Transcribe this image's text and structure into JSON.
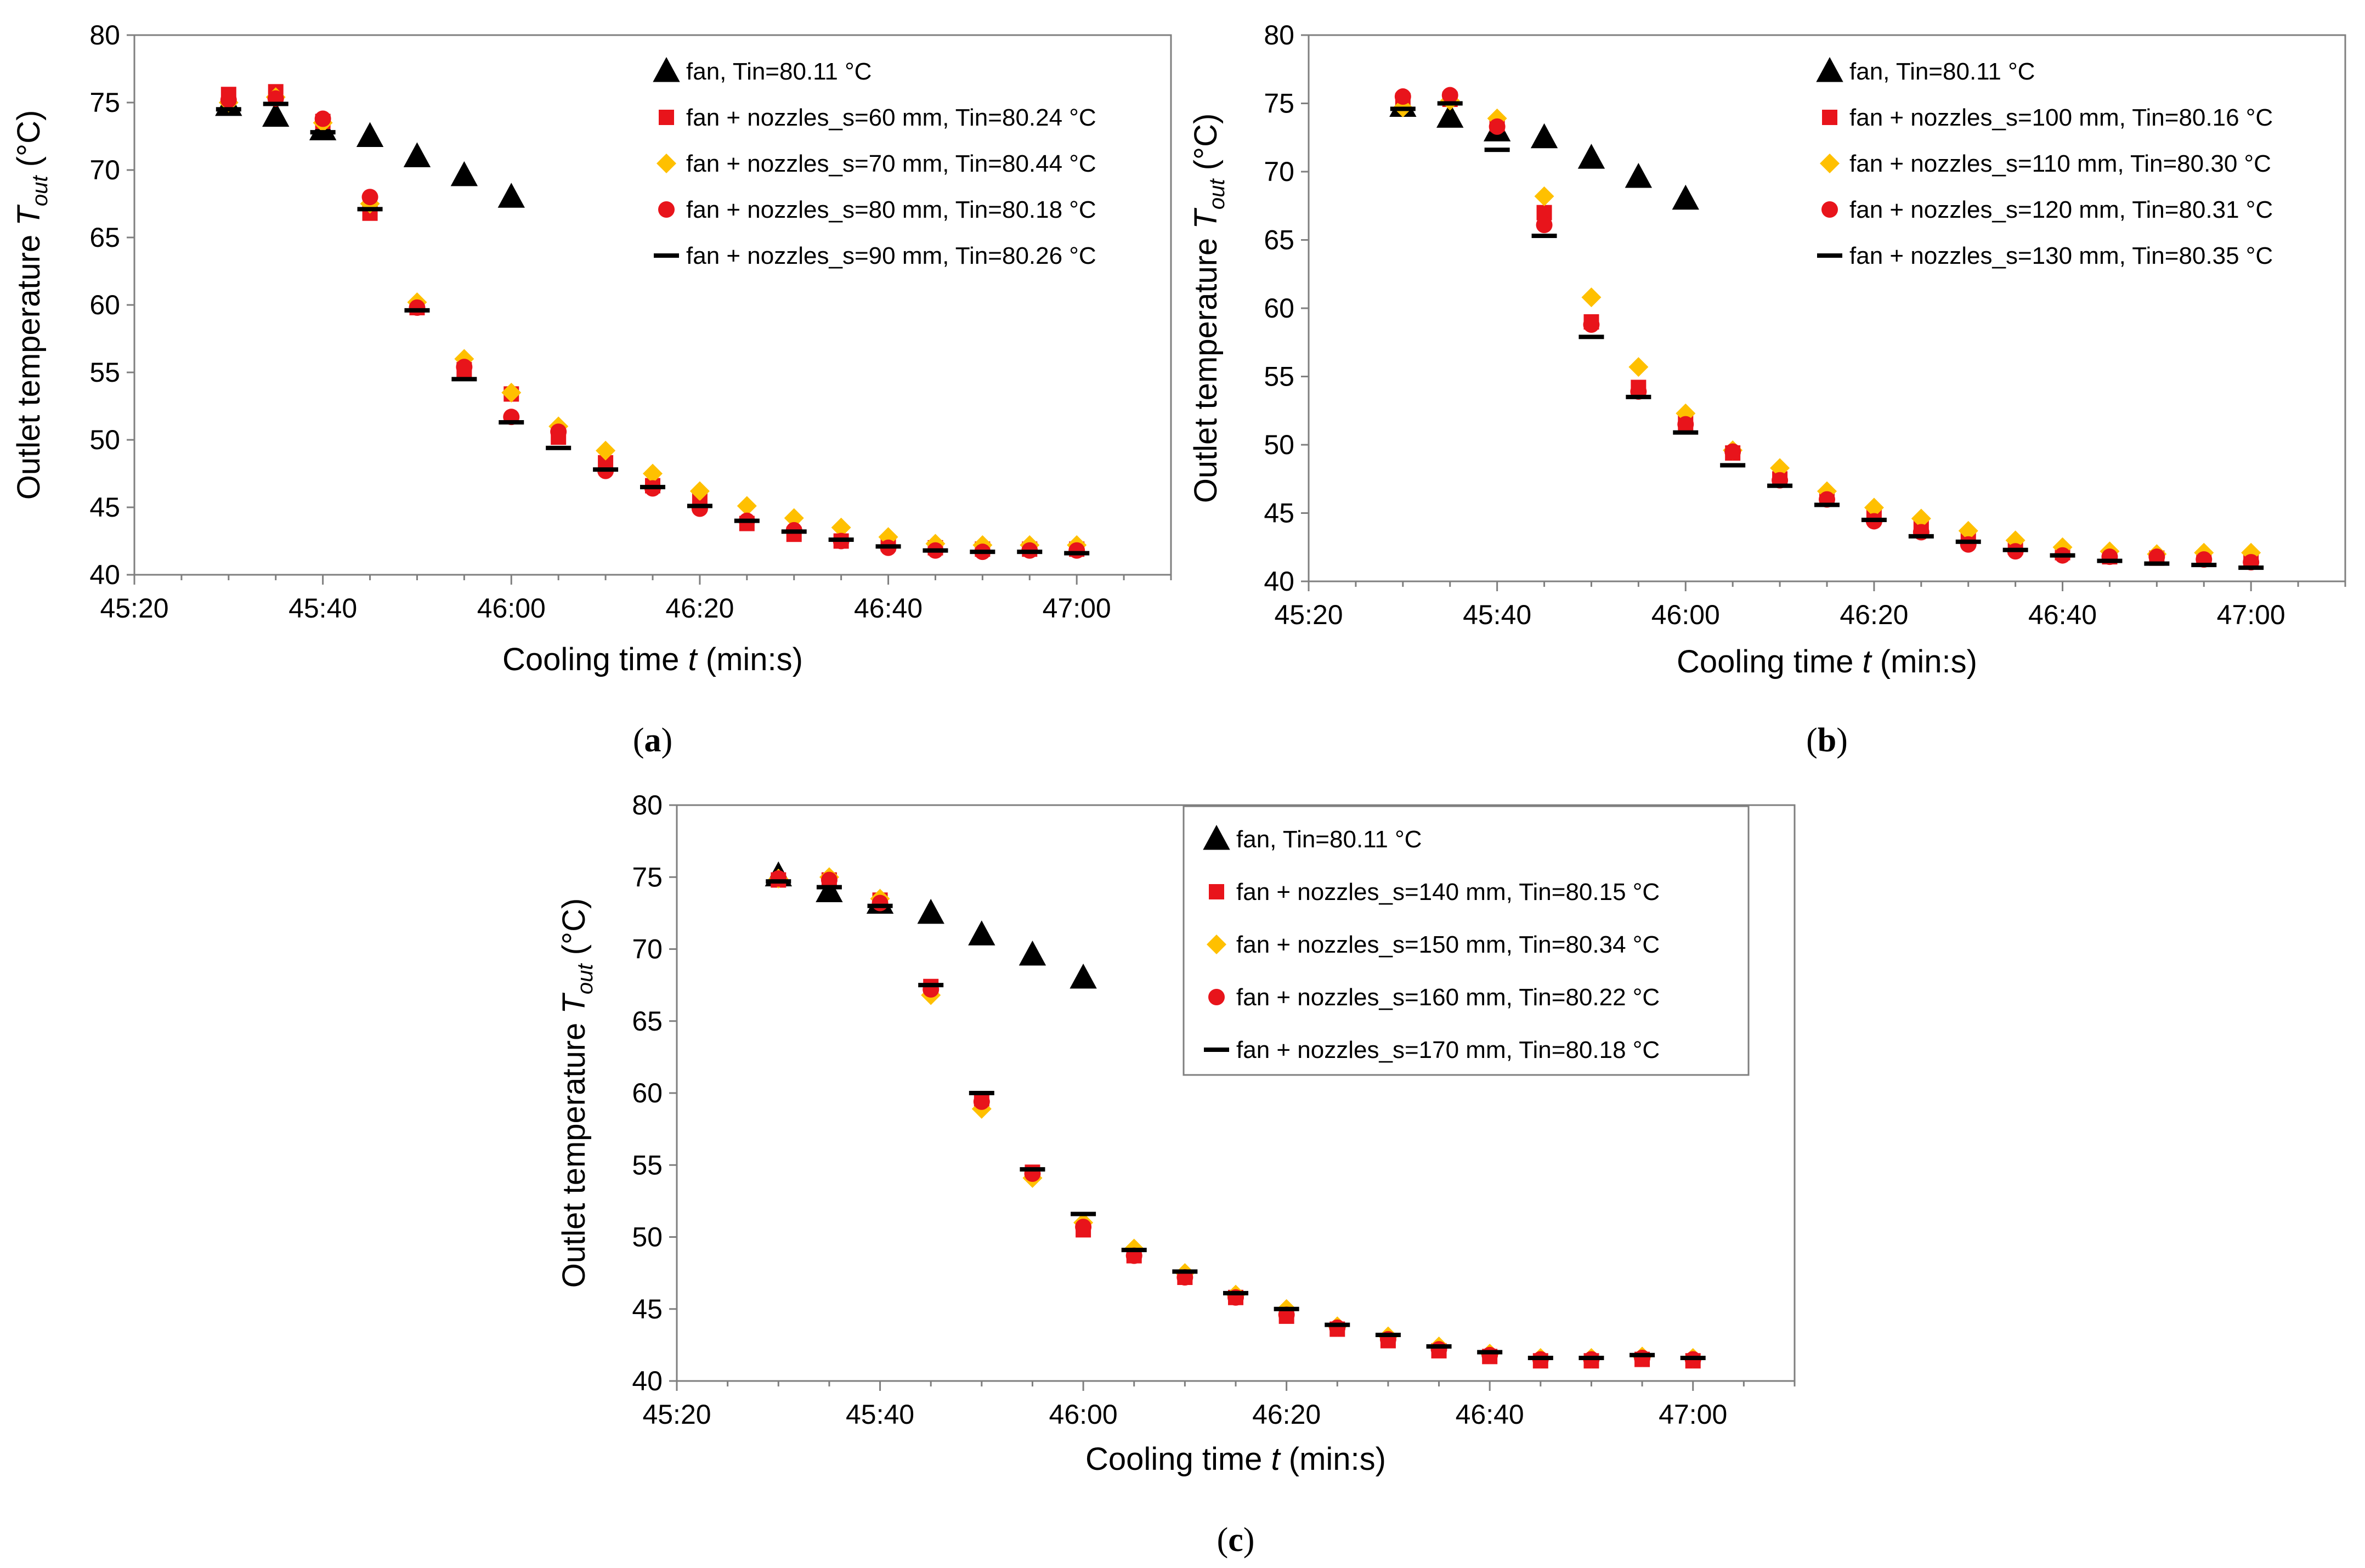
{
  "chart_data": [
    {
      "type": "scatter",
      "caption": "a",
      "title": "",
      "xlabel": "Cooling time t (min:s)",
      "xlabel_parts": {
        "pre": "Cooling time ",
        "var": "t",
        "post": " (min:s)"
      },
      "ylabel_parts": {
        "pre": "Outlet temperature ",
        "var": "T",
        "sub": "out",
        "post": " (°C)"
      },
      "xlim_seconds": [
        2720,
        2830
      ],
      "ylim": [
        40,
        80
      ],
      "x_ticks": [
        "45:20",
        "45:40",
        "46:00",
        "46:20",
        "46:40",
        "47:00"
      ],
      "y_ticks": [
        "40",
        "45",
        "50",
        "55",
        "60",
        "65",
        "70",
        "75",
        "80"
      ],
      "legend_position": "top-right",
      "legend_border": false,
      "series": [
        {
          "name": "fan, Tin=80.11 °C",
          "marker": "triangle",
          "color": "#000000",
          "x": [
            "45:30",
            "45:35",
            "45:40",
            "45:45",
            "45:50",
            "45:55",
            "46:00"
          ],
          "values": [
            74.8,
            74.0,
            73.0,
            72.5,
            71.0,
            69.6,
            68.0
          ]
        },
        {
          "name": "fan + nozzles_s=60 mm, Tin=80.24 °C",
          "marker": "square",
          "color": "#e8141b",
          "x": [
            "45:30",
            "45:35",
            "45:40",
            "45:45",
            "45:50",
            "45:55",
            "46:00",
            "46:05",
            "46:10",
            "46:15",
            "46:20",
            "46:25",
            "46:30",
            "46:35",
            "46:40",
            "46:45",
            "46:50",
            "46:55",
            "47:00"
          ],
          "values": [
            75.6,
            75.8,
            73.6,
            66.8,
            59.8,
            55.2,
            53.4,
            50.2,
            48.3,
            46.6,
            45.5,
            43.8,
            43.0,
            42.5,
            42.3,
            42.0,
            41.9,
            41.9,
            41.9
          ]
        },
        {
          "name": "fan + nozzles_s=70 mm, Tin=80.44 °C",
          "marker": "diamond",
          "color": "#ffc000",
          "x": [
            "45:30",
            "45:35",
            "45:40",
            "45:45",
            "45:50",
            "45:55",
            "46:00",
            "46:05",
            "46:10",
            "46:15",
            "46:20",
            "46:25",
            "46:30",
            "46:35",
            "46:40",
            "46:45",
            "46:50",
            "46:55",
            "47:00"
          ],
          "values": [
            75.0,
            75.4,
            73.5,
            67.5,
            60.2,
            56.0,
            53.5,
            51.0,
            49.2,
            47.5,
            46.2,
            45.1,
            44.2,
            43.5,
            42.8,
            42.3,
            42.2,
            42.2,
            42.2
          ]
        },
        {
          "name": "fan + nozzles_s=80 mm, Tin=80.18 °C",
          "marker": "circle",
          "color": "#e8141b",
          "x": [
            "45:30",
            "45:35",
            "45:40",
            "45:45",
            "45:50",
            "45:55",
            "46:00",
            "46:05",
            "46:10",
            "46:15",
            "46:20",
            "46:25",
            "46:30",
            "46:35",
            "46:40",
            "46:45",
            "46:50",
            "46:55",
            "47:00"
          ],
          "values": [
            75.2,
            75.3,
            73.8,
            68.0,
            59.8,
            55.4,
            51.7,
            50.6,
            47.7,
            46.4,
            44.9,
            44.0,
            43.3,
            42.5,
            42.0,
            41.8,
            41.7,
            41.8,
            41.8
          ]
        },
        {
          "name": "fan + nozzles_s=90 mm, Tin=80.26 °C",
          "marker": "dash",
          "color": "#000000",
          "x": [
            "45:30",
            "45:35",
            "45:40",
            "45:45",
            "45:50",
            "45:55",
            "46:00",
            "46:05",
            "46:10",
            "46:15",
            "46:20",
            "46:25",
            "46:30",
            "46:35",
            "46:40",
            "46:45",
            "46:50",
            "46:55",
            "47:00"
          ],
          "values": [
            74.5,
            74.9,
            72.8,
            67.1,
            59.6,
            54.5,
            51.3,
            49.4,
            47.8,
            46.5,
            45.1,
            44.0,
            43.2,
            42.6,
            42.1,
            41.8,
            41.7,
            41.7,
            41.6
          ]
        }
      ]
    },
    {
      "type": "scatter",
      "caption": "b",
      "title": "",
      "xlabel": "Cooling time t (min:s)",
      "xlabel_parts": {
        "pre": "Cooling time ",
        "var": "t",
        "post": " (min:s)"
      },
      "ylabel_parts": {
        "pre": "Outlet temperature ",
        "var": "T",
        "sub": "out",
        "post": " (°C)"
      },
      "xlim_seconds": [
        2720,
        2830
      ],
      "ylim": [
        40,
        80
      ],
      "x_ticks": [
        "45:20",
        "45:40",
        "46:00",
        "46:20",
        "46:40",
        "47:00"
      ],
      "y_ticks": [
        "40",
        "45",
        "50",
        "55",
        "60",
        "65",
        "70",
        "75",
        "80"
      ],
      "legend_position": "top-right",
      "legend_border": false,
      "series": [
        {
          "name": "fan, Tin=80.11 °C",
          "marker": "triangle",
          "color": "#000000",
          "x": [
            "45:30",
            "45:35",
            "45:40",
            "45:45",
            "45:50",
            "45:55",
            "46:00"
          ],
          "values": [
            74.8,
            74.0,
            73.0,
            72.5,
            71.0,
            69.6,
            68.0
          ]
        },
        {
          "name": "fan + nozzles_s=100 mm, Tin=80.16 °C",
          "marker": "square",
          "color": "#e8141b",
          "x": [
            "45:30",
            "45:35",
            "45:40",
            "45:45",
            "45:50",
            "45:55",
            "46:00",
            "46:05",
            "46:10",
            "46:15",
            "46:20",
            "46:25",
            "46:30",
            "46:35",
            "46:40",
            "46:45",
            "46:50",
            "46:55",
            "47:00"
          ],
          "values": [
            75.2,
            75.3,
            73.5,
            67.0,
            59.0,
            54.2,
            51.6,
            49.4,
            47.5,
            46.1,
            44.8,
            44.0,
            43.2,
            42.5,
            42.1,
            41.8,
            41.7,
            41.7,
            41.6
          ]
        },
        {
          "name": "fan + nozzles_s=110 mm, Tin=80.30 °C",
          "marker": "diamond",
          "color": "#ffc000",
          "x": [
            "45:30",
            "45:35",
            "45:40",
            "45:45",
            "45:50",
            "45:55",
            "46:00",
            "46:05",
            "46:10",
            "46:15",
            "46:20",
            "46:25",
            "46:30",
            "46:35",
            "46:40",
            "46:45",
            "46:50",
            "46:55",
            "47:00"
          ],
          "values": [
            74.7,
            75.2,
            73.9,
            68.2,
            60.8,
            55.7,
            52.3,
            49.6,
            48.3,
            46.6,
            45.4,
            44.6,
            43.7,
            43.0,
            42.5,
            42.2,
            42.0,
            42.1,
            42.1
          ]
        },
        {
          "name": "fan + nozzles_s=120 mm, Tin=80.31 °C",
          "marker": "circle",
          "color": "#e8141b",
          "x": [
            "45:30",
            "45:35",
            "45:40",
            "45:45",
            "45:50",
            "45:55",
            "46:00",
            "46:05",
            "46:10",
            "46:15",
            "46:20",
            "46:25",
            "46:30",
            "46:35",
            "46:40",
            "46:45",
            "46:50",
            "46:55",
            "47:00"
          ],
          "values": [
            75.5,
            75.6,
            73.3,
            66.1,
            58.8,
            53.9,
            51.5,
            49.5,
            47.4,
            46.0,
            44.4,
            43.6,
            42.7,
            42.2,
            41.9,
            41.8,
            41.8,
            41.6,
            41.4
          ]
        },
        {
          "name": "fan + nozzles_s=130 mm, Tin=80.35 °C",
          "marker": "dash",
          "color": "#000000",
          "x": [
            "45:30",
            "45:35",
            "45:40",
            "45:45",
            "45:50",
            "45:55",
            "46:00",
            "46:05",
            "46:10",
            "46:15",
            "46:20",
            "46:25",
            "46:30",
            "46:35",
            "46:40",
            "46:45",
            "46:50",
            "46:55",
            "47:00"
          ],
          "values": [
            74.6,
            75.0,
            71.6,
            65.3,
            57.9,
            53.5,
            50.9,
            48.5,
            47.0,
            45.6,
            44.5,
            43.3,
            42.9,
            42.3,
            41.9,
            41.5,
            41.3,
            41.2,
            41.0
          ]
        }
      ]
    },
    {
      "type": "scatter",
      "caption": "c",
      "title": "",
      "xlabel": "Cooling time t (min:s)",
      "xlabel_parts": {
        "pre": "Cooling time ",
        "var": "t",
        "post": " (min:s)"
      },
      "ylabel_parts": {
        "pre": "Outlet temperature ",
        "var": "T",
        "sub": "out",
        "post": " (°C)"
      },
      "xlim_seconds": [
        2720,
        2830
      ],
      "ylim": [
        40,
        80
      ],
      "x_ticks": [
        "45:20",
        "45:40",
        "46:00",
        "46:20",
        "46:40",
        "47:00"
      ],
      "y_ticks": [
        "40",
        "45",
        "50",
        "55",
        "60",
        "65",
        "70",
        "75",
        "80"
      ],
      "legend_position": "top-right",
      "legend_border": true,
      "series": [
        {
          "name": "fan, Tin=80.11 °C",
          "marker": "triangle",
          "color": "#000000",
          "x": [
            "45:30",
            "45:35",
            "45:40",
            "45:45",
            "45:50",
            "45:55",
            "46:00"
          ],
          "values": [
            75.1,
            74.0,
            73.2,
            72.5,
            71.0,
            69.6,
            68.0
          ]
        },
        {
          "name": "fan + nozzles_s=140 mm, Tin=80.15 °C",
          "marker": "square",
          "color": "#e8141b",
          "x": [
            "45:30",
            "45:35",
            "45:40",
            "45:45",
            "45:50",
            "45:55",
            "46:00",
            "46:05",
            "46:10",
            "46:15",
            "46:20",
            "46:25",
            "46:30",
            "46:35",
            "46:40",
            "46:45",
            "46:50",
            "46:55",
            "47:00"
          ],
          "values": [
            74.8,
            74.8,
            73.4,
            67.4,
            59.6,
            54.5,
            50.5,
            48.7,
            47.2,
            45.8,
            44.5,
            43.6,
            42.8,
            42.1,
            41.7,
            41.4,
            41.4,
            41.5,
            41.4
          ]
        },
        {
          "name": "fan + nozzles_s=150 mm, Tin=80.34 °C",
          "marker": "diamond",
          "color": "#ffc000",
          "x": [
            "45:30",
            "45:35",
            "45:40",
            "45:45",
            "45:50",
            "45:55",
            "46:00",
            "46:05",
            "46:10",
            "46:15",
            "46:20",
            "46:25",
            "46:30",
            "46:35",
            "46:40",
            "46:45",
            "46:50",
            "46:55",
            "47:00"
          ],
          "values": [
            74.9,
            75.0,
            73.5,
            66.8,
            58.9,
            54.1,
            51.0,
            49.2,
            47.5,
            46.0,
            45.0,
            43.8,
            43.1,
            42.4,
            41.9,
            41.6,
            41.6,
            41.7,
            41.6
          ]
        },
        {
          "name": "fan + nozzles_s=160 mm, Tin=80.22 °C",
          "marker": "circle",
          "color": "#e8141b",
          "x": [
            "45:30",
            "45:35",
            "45:40",
            "45:45",
            "45:50",
            "45:55",
            "46:00",
            "46:05",
            "46:10",
            "46:15",
            "46:20",
            "46:25",
            "46:30",
            "46:35",
            "46:40",
            "46:45",
            "46:50",
            "46:55",
            "47:00"
          ],
          "values": [
            74.9,
            74.8,
            73.2,
            67.2,
            59.4,
            54.4,
            50.7,
            48.7,
            47.2,
            45.8,
            44.6,
            43.7,
            42.9,
            42.2,
            41.8,
            41.5,
            41.5,
            41.6,
            41.5
          ]
        },
        {
          "name": "fan + nozzles_s=170 mm, Tin=80.18 °C",
          "marker": "dash",
          "color": "#000000",
          "x": [
            "45:30",
            "45:35",
            "45:40",
            "45:45",
            "45:50",
            "45:55",
            "46:00",
            "46:05",
            "46:10",
            "46:15",
            "46:20",
            "46:25",
            "46:30",
            "46:35",
            "46:40",
            "46:45",
            "46:50",
            "46:55",
            "47:00"
          ],
          "values": [
            74.7,
            74.3,
            73.0,
            67.5,
            60.0,
            54.7,
            51.6,
            49.1,
            47.6,
            46.1,
            45.0,
            43.9,
            43.2,
            42.4,
            42.0,
            41.6,
            41.6,
            41.8,
            41.6
          ]
        }
      ]
    }
  ]
}
